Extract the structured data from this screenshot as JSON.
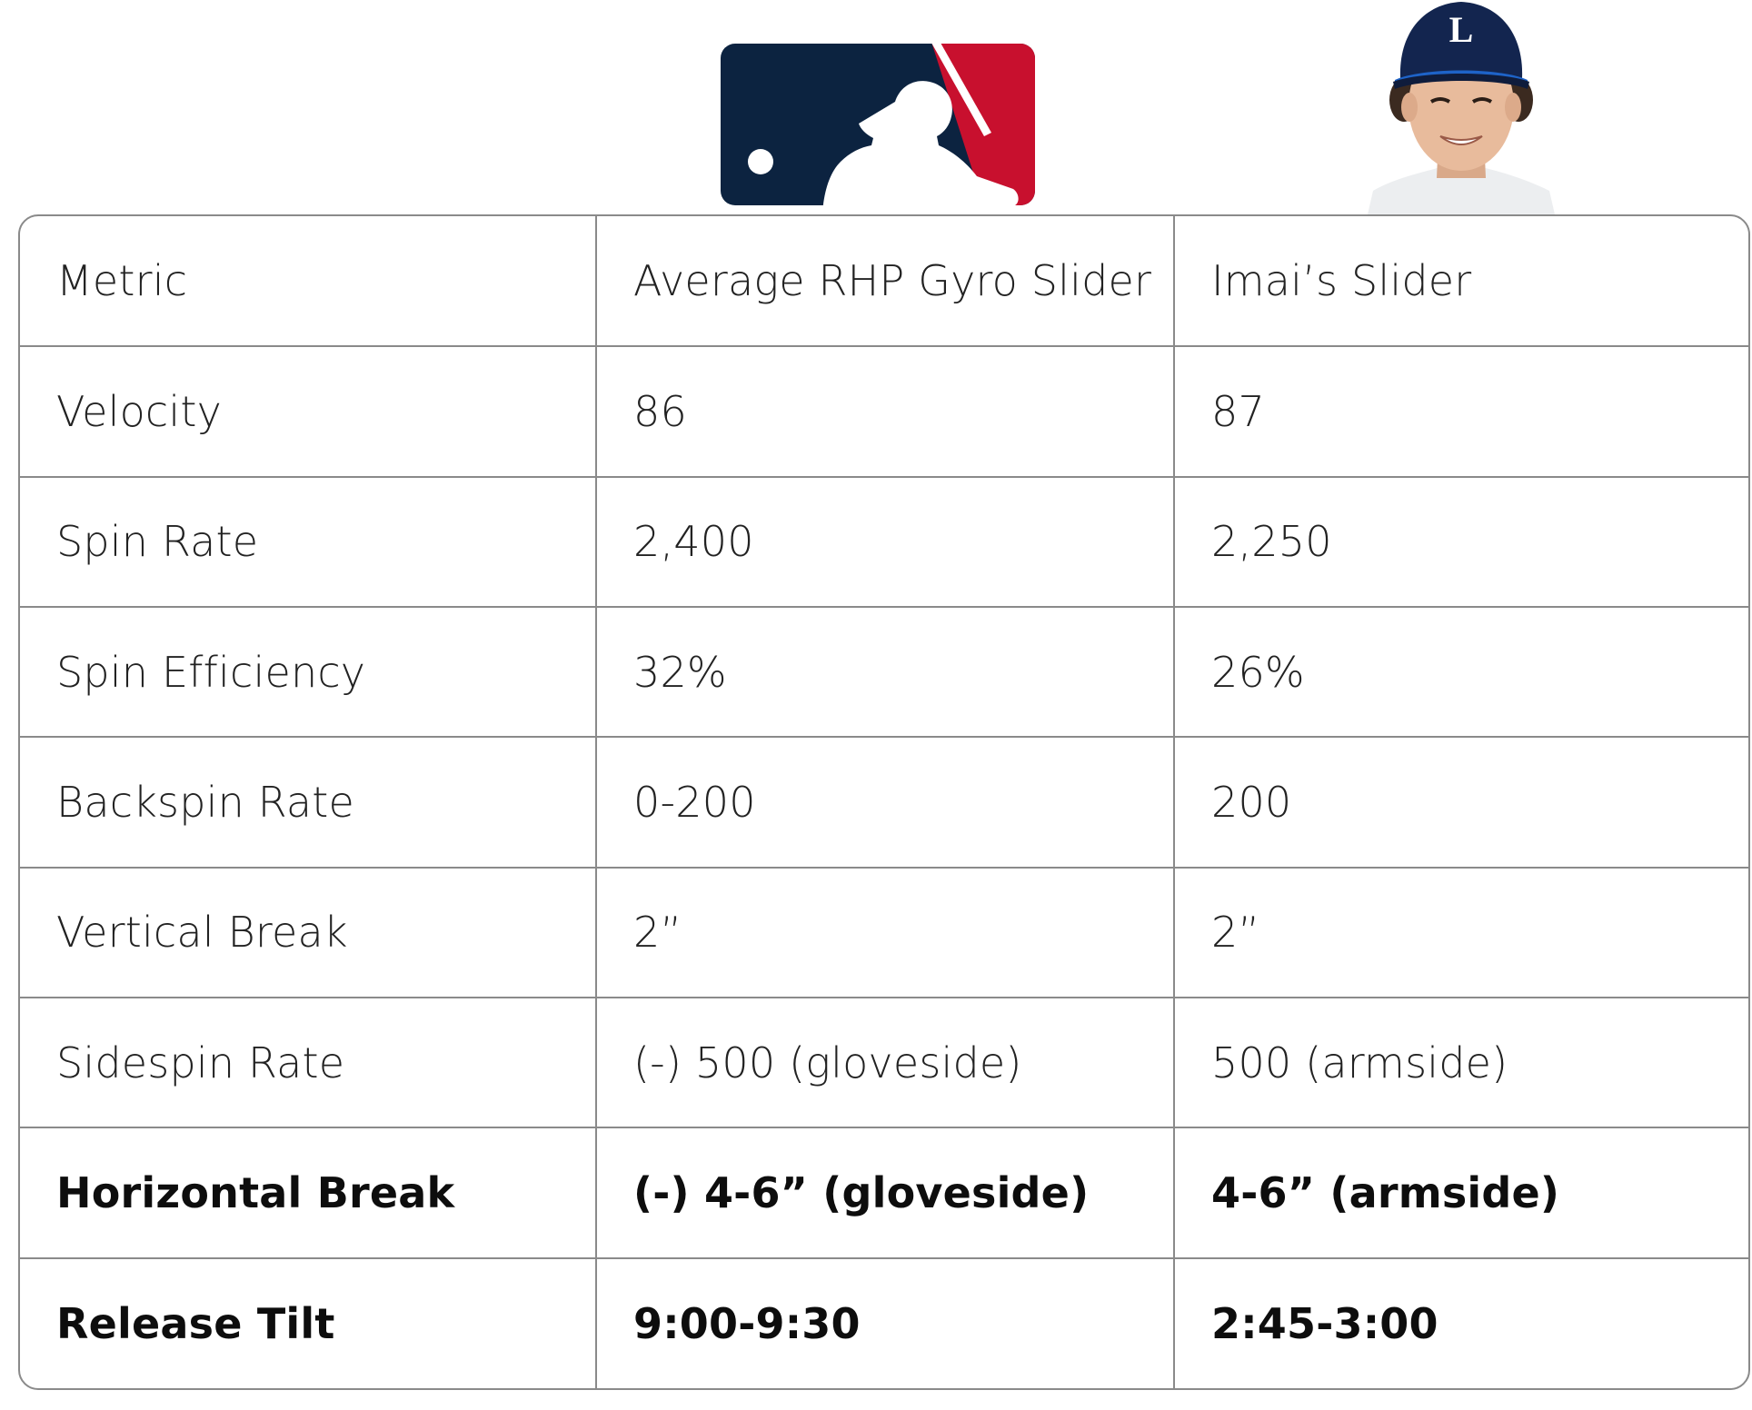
{
  "header": {
    "logo_icon": "mlb-batter-logo",
    "logo_colors": {
      "left": "#0c2340",
      "right": "#c8102e"
    },
    "player_photo_icon": "player-headshot",
    "cap_letter": "L"
  },
  "table": {
    "headers": [
      "Metric",
      "Average RHP Gyro Slider",
      "Imai’s Slider"
    ],
    "rows": [
      {
        "metric": "Velocity",
        "average": "86",
        "imai": "87",
        "bold": false
      },
      {
        "metric": "Spin Rate",
        "average": "2,400",
        "imai": "2,250",
        "bold": false
      },
      {
        "metric": "Spin Efficiency",
        "average": "32%",
        "imai": "26%",
        "bold": false
      },
      {
        "metric": "Backspin Rate",
        "average": "0-200",
        "imai": "200",
        "bold": false
      },
      {
        "metric": "Vertical Break",
        "average": "2”",
        "imai": "2”",
        "bold": false
      },
      {
        "metric": "Sidespin Rate",
        "average": "(-) 500 (gloveside)",
        "imai": "500 (armside)",
        "bold": false
      },
      {
        "metric": "Horizontal Break",
        "average": "(-) 4-6” (gloveside)",
        "imai": "4-6” (armside)",
        "bold": true
      },
      {
        "metric": "Release Tilt",
        "average": "9:00-9:30",
        "imai": "2:45-3:00",
        "bold": true
      }
    ]
  }
}
